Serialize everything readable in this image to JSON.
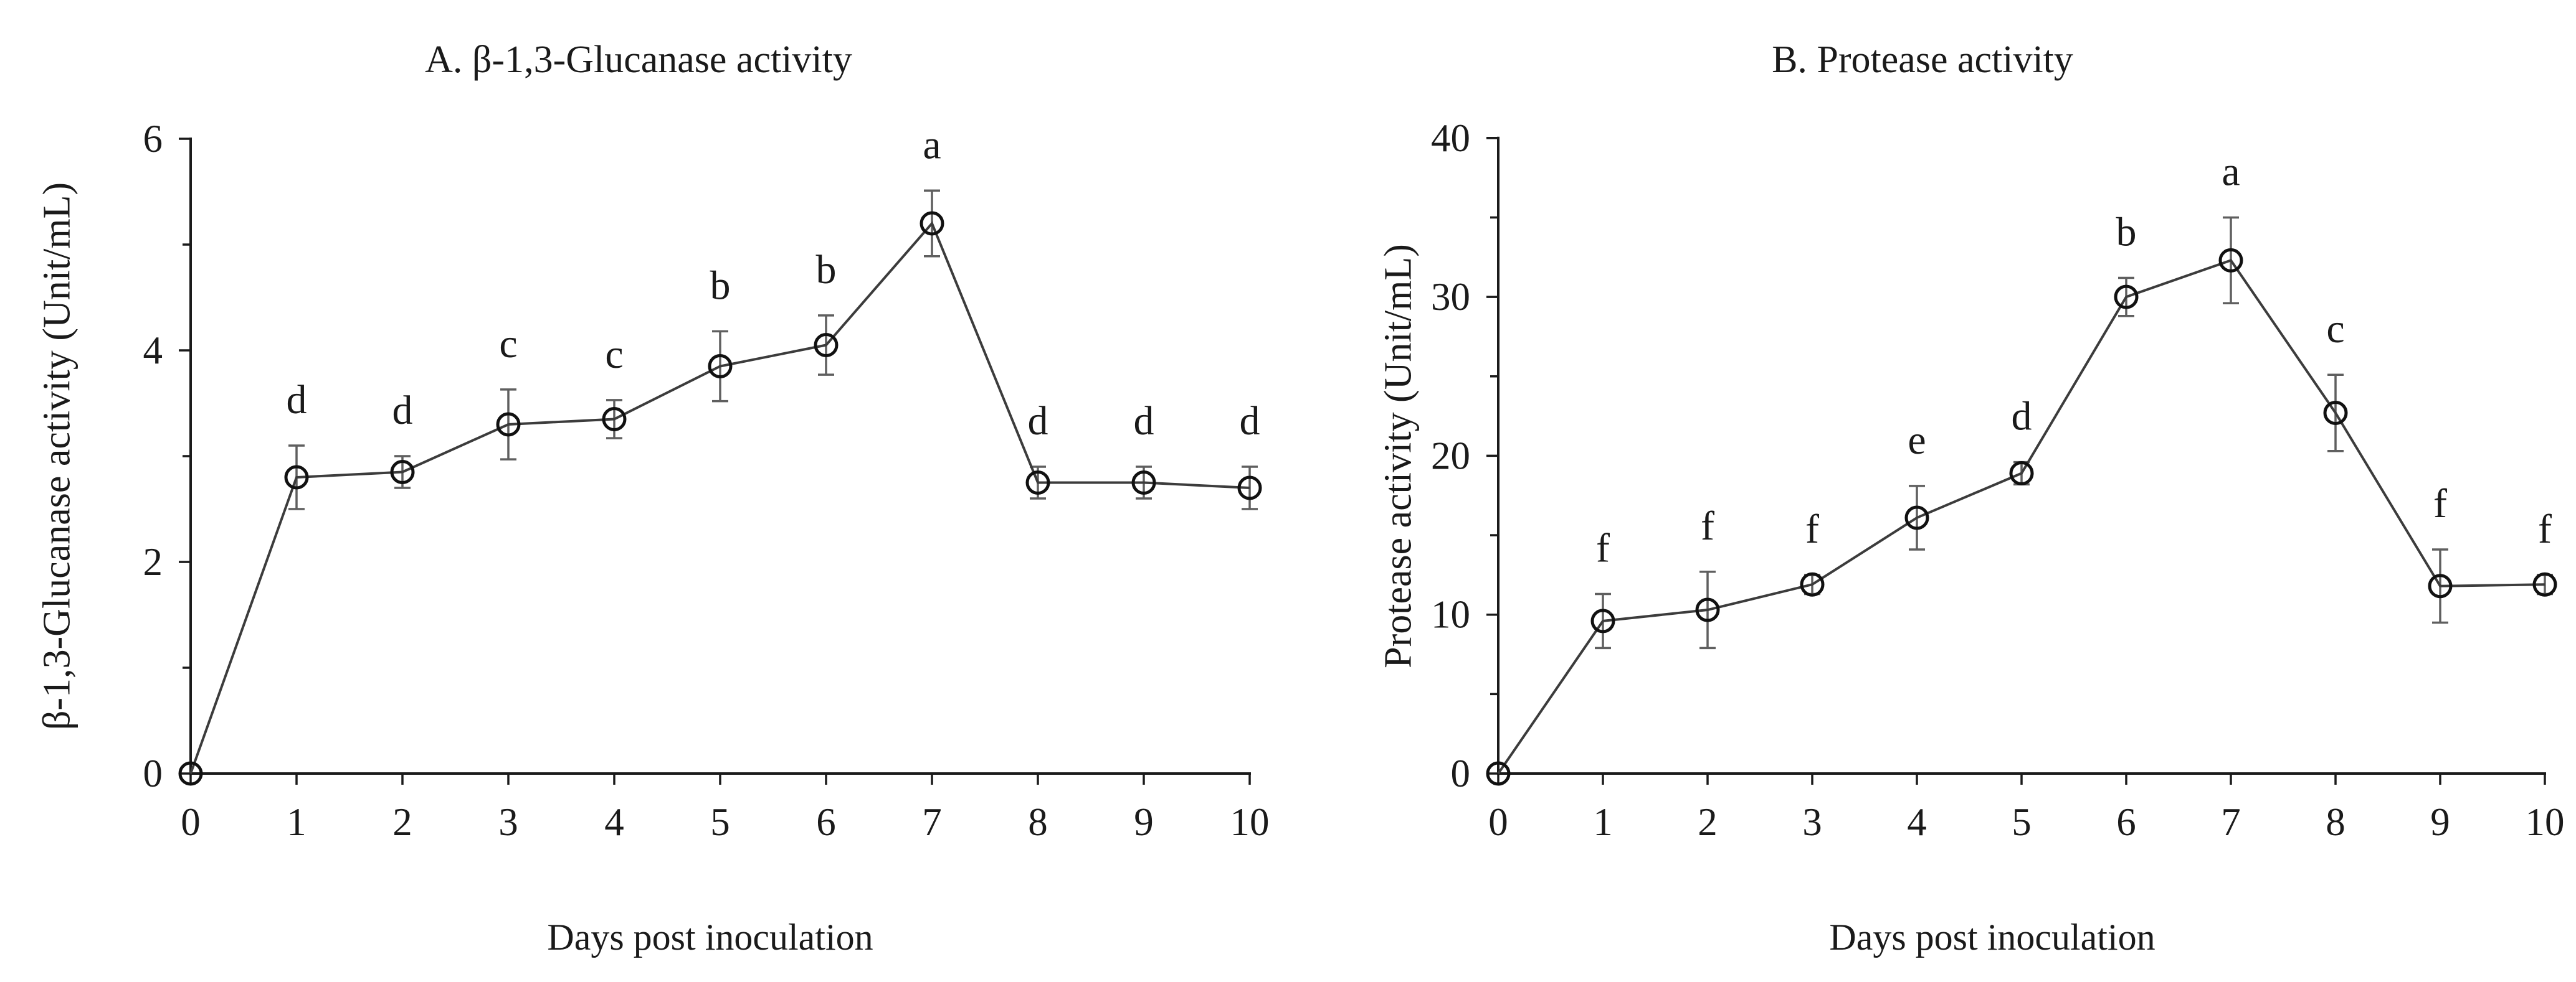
{
  "figure": {
    "background": "#ffffff"
  },
  "colors": {
    "axis": "#1a1a1a",
    "series_line": "#3c3c3c",
    "error_bar": "#5f5f5f",
    "marker_stroke": "#111111",
    "text": "#1a1a1a"
  },
  "chart_data": [
    {
      "type": "line",
      "panel": "A",
      "title": "A. β-1,3-Glucanase activity",
      "xlabel": "Days post inoculation",
      "ylabel": "β-1,3-Glucanase activity (Unit/mL)",
      "x": [
        0,
        1,
        2,
        3,
        4,
        5,
        6,
        7,
        8,
        9,
        10
      ],
      "values": [
        0,
        2.8,
        2.85,
        3.3,
        3.35,
        3.85,
        4.05,
        5.2,
        2.75,
        2.75,
        2.7
      ],
      "errors": [
        0,
        0.3,
        0.15,
        0.33,
        0.18,
        0.33,
        0.28,
        0.31,
        0.15,
        0.15,
        0.2
      ],
      "sig_letters": [
        "",
        "d",
        "d",
        "c",
        "c",
        "b",
        "b",
        "a",
        "d",
        "d",
        "d"
      ],
      "xlim": [
        0,
        10
      ],
      "ylim": [
        0,
        6
      ],
      "xticks": [
        0,
        1,
        2,
        3,
        4,
        5,
        6,
        7,
        8,
        9,
        10
      ],
      "ytick_major": [
        0,
        2,
        4,
        6
      ],
      "ytick_minor": [
        1,
        3,
        5
      ],
      "marker": "open-circle",
      "grid": false,
      "legend": null
    },
    {
      "type": "line",
      "panel": "B",
      "title": "B. Protease activity",
      "xlabel": "Days post inoculation",
      "ylabel": "Protease activity (Unit/mL)",
      "x": [
        0,
        1,
        2,
        3,
        4,
        5,
        6,
        7,
        8,
        9,
        10
      ],
      "values": [
        0,
        9.6,
        10.3,
        11.9,
        16.1,
        18.9,
        30.0,
        32.3,
        22.7,
        11.8,
        11.9
      ],
      "errors": [
        0,
        1.7,
        2.4,
        0.6,
        2.0,
        0.7,
        1.2,
        2.7,
        2.4,
        2.3,
        0.6
      ],
      "sig_letters": [
        "",
        "f",
        "f",
        "f",
        "e",
        "d",
        "b",
        "a",
        "c",
        "f",
        "f"
      ],
      "xlim": [
        0,
        10
      ],
      "ylim": [
        0,
        40
      ],
      "xticks": [
        0,
        1,
        2,
        3,
        4,
        5,
        6,
        7,
        8,
        9,
        10
      ],
      "ytick_major": [
        0,
        10,
        20,
        30,
        40
      ],
      "ytick_minor": [
        5,
        15,
        25,
        35
      ],
      "marker": "open-circle",
      "grid": false,
      "legend": null
    }
  ]
}
